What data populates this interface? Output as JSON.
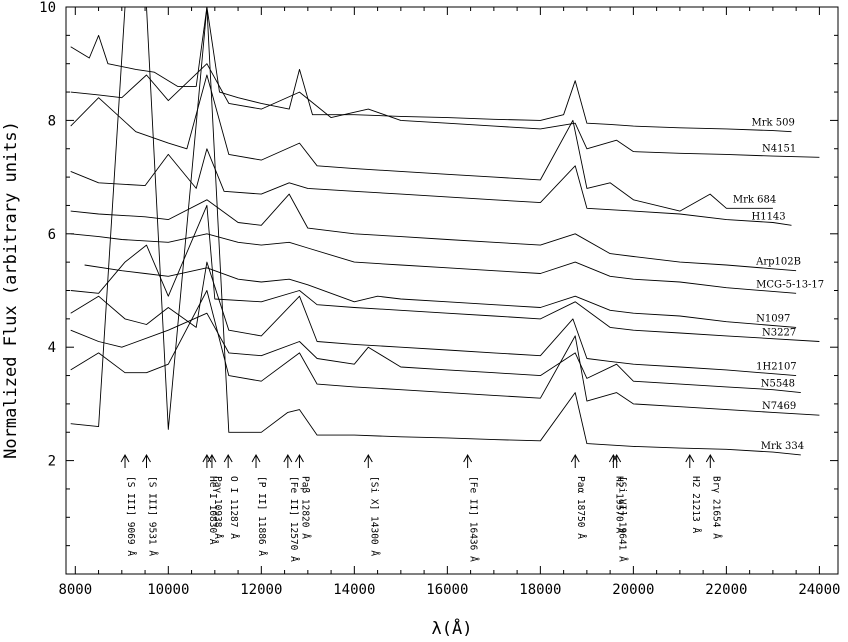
{
  "chart_data": {
    "type": "line",
    "title": "",
    "xlabel": "λ(Å)",
    "ylabel": "Normalized Flux (arbitrary units)",
    "xlim": [
      7800,
      24400
    ],
    "ylim": [
      0,
      10
    ],
    "x_ticks": [
      8000,
      10000,
      12000,
      14000,
      16000,
      18000,
      20000,
      22000,
      24000
    ],
    "y_ticks": [
      2,
      4,
      6,
      8,
      10
    ],
    "series": [
      {
        "name": "Mrk 509",
        "x": [
          7900,
          8300,
          8500,
          8700,
          9300,
          9700,
          10200,
          10600,
          10830,
          11100,
          11500,
          12000,
          12600,
          12820,
          13100,
          14000,
          15000,
          16000,
          17000,
          18000,
          18500,
          18750,
          19000,
          19500,
          20000,
          21000,
          22000,
          23000,
          23400
        ],
        "y": [
          9.3,
          9.1,
          9.5,
          9.0,
          8.9,
          8.85,
          8.6,
          8.6,
          10.0,
          8.5,
          8.4,
          8.3,
          8.2,
          8.9,
          8.1,
          8.1,
          8.07,
          8.05,
          8.02,
          8.0,
          8.1,
          8.7,
          7.95,
          7.93,
          7.9,
          7.87,
          7.85,
          7.82,
          7.8
        ]
      },
      {
        "name": "N4151",
        "x": [
          7900,
          8500,
          9000,
          9531,
          10000,
          10830,
          11300,
          12000,
          12820,
          13500,
          14300,
          15000,
          16000,
          17000,
          18000,
          18750,
          19000,
          19640,
          20000,
          21000,
          22000,
          23000,
          24000
        ],
        "y": [
          8.5,
          8.45,
          8.4,
          8.8,
          8.35,
          9.0,
          8.3,
          8.2,
          8.5,
          8.05,
          8.2,
          8.0,
          7.95,
          7.9,
          7.85,
          7.95,
          7.5,
          7.65,
          7.45,
          7.42,
          7.4,
          7.37,
          7.35
        ]
      },
      {
        "name": "Mrk 684",
        "x": [
          7900,
          8500,
          9300,
          10000,
          10400,
          10830,
          11300,
          12000,
          12820,
          13200,
          14000,
          15000,
          16000,
          17000,
          18000,
          18700,
          19000,
          19500,
          20000,
          21000,
          21650,
          22000,
          23000
        ],
        "y": [
          7.9,
          8.4,
          7.8,
          7.6,
          7.5,
          8.8,
          7.4,
          7.3,
          7.6,
          7.2,
          7.15,
          7.1,
          7.05,
          7.0,
          6.95,
          8.0,
          6.8,
          6.9,
          6.6,
          6.4,
          6.7,
          6.45,
          6.45
        ]
      },
      {
        "name": "H1143",
        "x": [
          7900,
          8500,
          9500,
          10000,
          10600,
          10830,
          11200,
          12000,
          12600,
          13000,
          14000,
          15000,
          16000,
          17000,
          18000,
          18750,
          19000,
          20000,
          21000,
          22000,
          23000,
          23400
        ],
        "y": [
          7.1,
          6.9,
          6.85,
          7.4,
          6.8,
          7.5,
          6.75,
          6.7,
          6.9,
          6.8,
          6.75,
          6.7,
          6.65,
          6.6,
          6.55,
          7.2,
          6.45,
          6.4,
          6.35,
          6.25,
          6.2,
          6.15
        ]
      },
      {
        "name": "Arp102B",
        "x": [
          7900,
          8500,
          9500,
          10000,
          10830,
          11500,
          12000,
          12600,
          13000,
          14000,
          15000,
          16000,
          17000,
          18000,
          18750,
          19500,
          20000,
          21000,
          22000,
          23500
        ],
        "y": [
          6.4,
          6.35,
          6.3,
          6.25,
          6.6,
          6.2,
          6.15,
          6.7,
          6.1,
          6.0,
          5.95,
          5.9,
          5.85,
          5.8,
          6.0,
          5.65,
          5.6,
          5.5,
          5.45,
          5.35
        ]
      },
      {
        "name": "MCG-5-13-17",
        "x": [
          7900,
          8500,
          9000,
          10000,
          10830,
          11500,
          12000,
          12600,
          13000,
          14000,
          15000,
          16000,
          17000,
          18000,
          18750,
          19500,
          20000,
          21000,
          22000,
          23500
        ],
        "y": [
          6.0,
          5.95,
          5.9,
          5.85,
          6.0,
          5.85,
          5.8,
          5.85,
          5.75,
          5.5,
          5.45,
          5.4,
          5.35,
          5.3,
          5.5,
          5.25,
          5.2,
          5.15,
          5.05,
          4.95
        ]
      },
      {
        "name": "N1097",
        "x": [
          8200,
          9000,
          9500,
          10000,
          10830,
          11500,
          12000,
          12600,
          13000,
          14000,
          14500,
          15000,
          16000,
          17000,
          18000,
          18750,
          19500,
          20000,
          21000,
          22000,
          23500
        ],
        "y": [
          5.45,
          5.35,
          5.3,
          5.25,
          5.4,
          5.2,
          5.15,
          5.2,
          5.1,
          4.8,
          4.9,
          4.85,
          4.8,
          4.75,
          4.7,
          4.9,
          4.65,
          4.6,
          4.55,
          4.45,
          4.35
        ]
      },
      {
        "name": "N3227",
        "x": [
          7900,
          8500,
          9069,
          9531,
          10000,
          10830,
          11000,
          12000,
          12820,
          13200,
          14000,
          15000,
          16000,
          17000,
          18000,
          18750,
          19500,
          20000,
          21000,
          22000,
          24000
        ],
        "y": [
          5.0,
          4.95,
          5.5,
          5.8,
          4.9,
          6.5,
          4.85,
          4.8,
          5.0,
          4.75,
          4.7,
          4.65,
          4.6,
          4.55,
          4.5,
          4.8,
          4.35,
          4.3,
          4.25,
          4.2,
          4.1
        ]
      },
      {
        "name": "1H2107",
        "x": [
          7900,
          8500,
          9069,
          9531,
          10000,
          10600,
          10830,
          11300,
          12000,
          12820,
          13200,
          14000,
          15000,
          16000,
          17000,
          18000,
          18700,
          19000,
          19500,
          20000,
          21000,
          22000,
          23500
        ],
        "y": [
          4.6,
          4.9,
          4.5,
          4.4,
          4.7,
          4.35,
          5.5,
          4.3,
          4.2,
          4.9,
          4.1,
          4.05,
          4.0,
          3.95,
          3.9,
          3.85,
          4.5,
          3.8,
          3.75,
          3.7,
          3.65,
          3.6,
          3.5
        ]
      },
      {
        "name": "N5548",
        "x": [
          7900,
          8500,
          9000,
          10000,
          10830,
          11300,
          12000,
          12820,
          13200,
          14000,
          14300,
          15000,
          16000,
          17000,
          18000,
          18750,
          19000,
          19640,
          20000,
          21000,
          22000,
          23000,
          23600
        ],
        "y": [
          4.3,
          4.1,
          4.0,
          4.3,
          4.6,
          3.9,
          3.85,
          4.1,
          3.8,
          3.7,
          4.0,
          3.65,
          3.6,
          3.55,
          3.5,
          3.9,
          3.45,
          3.7,
          3.4,
          3.35,
          3.3,
          3.25,
          3.2
        ]
      },
      {
        "name": "N7469",
        "x": [
          7900,
          8500,
          9069,
          9531,
          10000,
          10830,
          11300,
          12000,
          12820,
          13200,
          14000,
          15000,
          16000,
          17000,
          18000,
          18750,
          19000,
          19640,
          20000,
          21000,
          22000,
          23000,
          24000
        ],
        "y": [
          3.6,
          3.9,
          3.55,
          3.55,
          3.7,
          5.0,
          3.5,
          3.4,
          3.9,
          3.35,
          3.3,
          3.25,
          3.2,
          3.15,
          3.1,
          4.2,
          3.05,
          3.2,
          3.0,
          2.95,
          2.9,
          2.85,
          2.8
        ]
      },
      {
        "name": "Mrk 334",
        "x": [
          7900,
          8500,
          9069,
          9531,
          10000,
          10830,
          11300,
          12000,
          12570,
          12820,
          13200,
          14000,
          15000,
          16000,
          17000,
          18000,
          18750,
          19000,
          20000,
          21000,
          22000,
          23000,
          23600
        ],
        "y": [
          2.65,
          2.6,
          10.0,
          10.0,
          2.55,
          10.0,
          2.5,
          2.5,
          2.85,
          2.9,
          2.45,
          2.45,
          2.42,
          2.4,
          2.37,
          2.35,
          3.2,
          2.3,
          2.25,
          2.22,
          2.2,
          2.15,
          2.1
        ]
      }
    ],
    "line_ids": [
      {
        "label": "[S III] 9069 Å",
        "x": 9069
      },
      {
        "label": "[S III] 9531 Å",
        "x": 9531
      },
      {
        "label": "He I 10830 Å",
        "x": 10830
      },
      {
        "label": "Paγ 10938 Å",
        "x": 10938
      },
      {
        "label": "O I 11287 Å",
        "x": 11287
      },
      {
        "label": "[P II] 11886 Å",
        "x": 11886
      },
      {
        "label": "[Fe II] 12570 Å",
        "x": 12570
      },
      {
        "label": "Paβ 12820 Å",
        "x": 12820
      },
      {
        "label": "[Si X] 14300 Å",
        "x": 14300
      },
      {
        "label": "[Fe II] 16436 Å",
        "x": 16436
      },
      {
        "label": "Paα 18750 Å",
        "x": 18750
      },
      {
        "label": "H2 19570 Å",
        "x": 19570
      },
      {
        "label": "[Si VI] 19641 Å",
        "x": 19641
      },
      {
        "label": "H2 21213 Å",
        "x": 21213
      },
      {
        "label": "Brγ 21654 Å",
        "x": 21654
      }
    ],
    "grid": false,
    "legend": "none (labels at right end of each spectrum)"
  }
}
